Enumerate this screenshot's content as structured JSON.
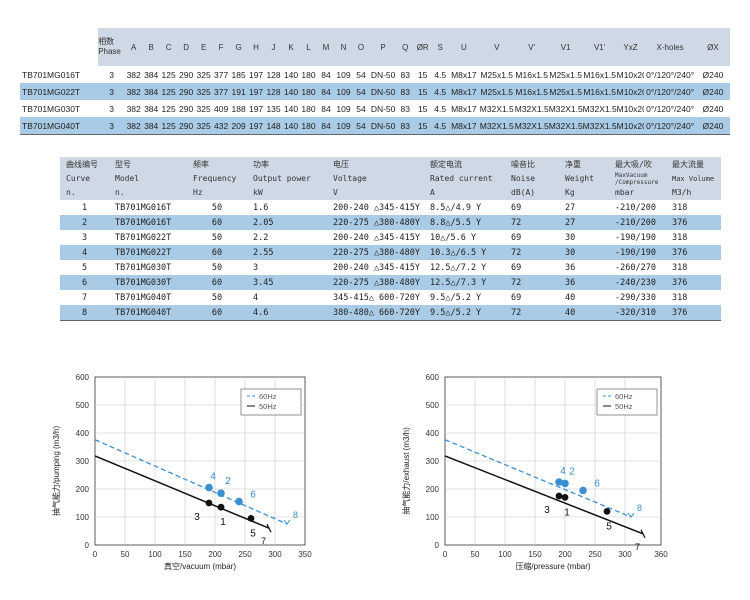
{
  "dimension_table": {
    "phase_header_cn": "相数",
    "phase_header_en": "Phase",
    "columns": [
      "A",
      "B",
      "C",
      "D",
      "E",
      "F",
      "G",
      "H",
      "J",
      "K",
      "L",
      "M",
      "N",
      "O",
      "P",
      "Q",
      "ØR",
      "S",
      "U",
      "V",
      "V'",
      "V1",
      "V1'",
      "YxZ",
      "X-holes",
      "ØX"
    ],
    "rows": [
      {
        "model": "TB701MG016T",
        "phase": "3",
        "values": [
          "382",
          "384",
          "125",
          "290",
          "325",
          "377",
          "185",
          "197",
          "128",
          "140",
          "180",
          "84",
          "109",
          "54",
          "DN-50",
          "83",
          "15",
          "4.5",
          "M8x17",
          "M25x1.5",
          "M16x1.5",
          "M25x1.5",
          "M16x1.5",
          "M10x20",
          "0°/120°/240°",
          "Ø240"
        ]
      },
      {
        "model": "TB701MG022T",
        "phase": "3",
        "values": [
          "382",
          "384",
          "125",
          "290",
          "325",
          "377",
          "191",
          "197",
          "128",
          "140",
          "180",
          "84",
          "109",
          "54",
          "DN-50",
          "83",
          "15",
          "4.5",
          "M8x17",
          "M25x1.5",
          "M16x1.5",
          "M25x1.5",
          "M16x1.5",
          "M10x20",
          "0°/120°/240°",
          "Ø240"
        ]
      },
      {
        "model": "TB701MG030T",
        "phase": "3",
        "values": [
          "382",
          "384",
          "125",
          "290",
          "325",
          "409",
          "188",
          "197",
          "135",
          "140",
          "180",
          "84",
          "109",
          "54",
          "DN-50",
          "83",
          "15",
          "4.5",
          "M8x17",
          "M32X1.5",
          "M32X1.5",
          "M32X1.5",
          "M32X1.5",
          "M10x20",
          "0°/120°/240°",
          "Ø240"
        ]
      },
      {
        "model": "TB701MG040T",
        "phase": "3",
        "values": [
          "382",
          "384",
          "125",
          "290",
          "325",
          "432",
          "209",
          "197",
          "148",
          "140",
          "180",
          "84",
          "109",
          "54",
          "DN-50",
          "83",
          "15",
          "4.5",
          "M8x17",
          "M32X1.5",
          "M32X1.5",
          "M32X1.5",
          "M32X1.5",
          "M10x20",
          "0°/120°/240°",
          "Ø240"
        ]
      }
    ]
  },
  "performance_table": {
    "headers": [
      {
        "cn": "曲线编号",
        "en": "Curve",
        "unit": "n."
      },
      {
        "cn": "型号",
        "en": "Model",
        "unit": "n."
      },
      {
        "cn": "频率",
        "en": "Frequency",
        "unit": "Hz"
      },
      {
        "cn": "功率",
        "en": "Output power",
        "unit": "kW"
      },
      {
        "cn": "电压",
        "en": "Voltage",
        "unit": "V"
      },
      {
        "cn": "额定电流",
        "en": "Rated current",
        "unit": "A"
      },
      {
        "cn": "噪音比",
        "en": "Noise",
        "unit": "dB(A)"
      },
      {
        "cn": "净重",
        "en": "Weight",
        "unit": "Kg"
      },
      {
        "cn": "最大吸/吹",
        "en": "MaxVacuum /Compressure",
        "unit": "mbar"
      },
      {
        "cn": "最大流量",
        "en": "Max Volume",
        "unit": "M3/h"
      }
    ],
    "rows": [
      [
        "1",
        "TB701MG016T",
        "50",
        "1.6",
        "200-240 △345-415Y",
        "8.5△/4.9 Y",
        "69",
        "27",
        "-210/200",
        "318"
      ],
      [
        "2",
        "TB701MG016T",
        "60",
        "2.05",
        "220-275 △380-480Y",
        "8.8△/5.5 Y",
        "72",
        "27",
        "-210/200",
        "376"
      ],
      [
        "3",
        "TB701MG022T",
        "50",
        "2.2",
        "200-240 △345-415Y",
        "10△/5.6 Y",
        "69",
        "30",
        "-190/190",
        "318"
      ],
      [
        "4",
        "TB701MG022T",
        "60",
        "2.55",
        "220-275 △380-480Y",
        "10.3△/6.5 Y",
        "72",
        "30",
        "-190/190",
        "376"
      ],
      [
        "5",
        "TB701MG030T",
        "50",
        "3",
        "200-240 △345-415Y",
        "12.5△/7.2 Y",
        "69",
        "36",
        "-260/270",
        "318"
      ],
      [
        "6",
        "TB701MG030T",
        "60",
        "3.45",
        "220-275 △380-480Y",
        "12.5△/7.3 Y",
        "72",
        "36",
        "-240/230",
        "376"
      ],
      [
        "7",
        "TB701MG040T",
        "50",
        "4",
        "345-415△ 600-720Y",
        "9.5△/5.2 Y",
        "69",
        "40",
        "-290/330",
        "318"
      ],
      [
        "8",
        "TB701MG040T",
        "60",
        "4.6",
        "380-480△ 660-720Y",
        "9.5△/5.2 Y",
        "72",
        "40",
        "-320/310",
        "376"
      ]
    ]
  },
  "chart_data": [
    {
      "type": "line",
      "xlabel": "真空/vacuum (mbar)",
      "ylabel": "抽气能力/pumping (m3/h)",
      "xlim": [
        0,
        350
      ],
      "ylim": [
        0,
        600
      ],
      "xticks": [
        0,
        50,
        100,
        150,
        200,
        250,
        300,
        350
      ],
      "yticks": [
        0,
        100,
        200,
        300,
        400,
        500,
        600
      ],
      "grid": true,
      "legend": {
        "position": "top-right",
        "entries": [
          "60Hz",
          "50Hz"
        ]
      },
      "colors": {
        "60Hz": "#3a8fd0",
        "50Hz": "#111111"
      },
      "series": [
        {
          "name": "60Hz",
          "style": "dashed",
          "x": [
            0,
            320
          ],
          "y": [
            376,
            75
          ],
          "end_label": "8"
        },
        {
          "name": "50Hz",
          "style": "solid",
          "x": [
            0,
            290
          ],
          "y": [
            318,
            60
          ],
          "end_label": "7"
        }
      ],
      "points": [
        {
          "label": "4",
          "series": "60Hz",
          "x": 190,
          "y": 205
        },
        {
          "label": "2",
          "series": "60Hz",
          "x": 210,
          "y": 185
        },
        {
          "label": "6",
          "series": "60Hz",
          "x": 240,
          "y": 155
        },
        {
          "label": "3",
          "series": "50Hz",
          "x": 190,
          "y": 150
        },
        {
          "label": "1",
          "series": "50Hz",
          "x": 210,
          "y": 135
        },
        {
          "label": "5",
          "series": "50Hz",
          "x": 260,
          "y": 95
        }
      ]
    },
    {
      "type": "line",
      "xlabel": "压缩/pressure (mbar)",
      "ylabel": "抽气能力/exhaust (m3/h)",
      "xlim": [
        0,
        360
      ],
      "ylim": [
        0,
        600
      ],
      "xticks": [
        0,
        50,
        100,
        150,
        200,
        250,
        300,
        360
      ],
      "yticks": [
        0,
        100,
        200,
        300,
        400,
        500,
        600
      ],
      "grid": true,
      "legend": {
        "position": "top-right",
        "entries": [
          "60Hz",
          "50Hz"
        ]
      },
      "colors": {
        "60Hz": "#3a8fd0",
        "50Hz": "#111111"
      },
      "series": [
        {
          "name": "60Hz",
          "style": "dashed",
          "x": [
            0,
            310
          ],
          "y": [
            376,
            100
          ],
          "end_label": "8"
        },
        {
          "name": "50Hz",
          "style": "solid",
          "x": [
            0,
            330
          ],
          "y": [
            318,
            40
          ],
          "end_label": "7"
        }
      ],
      "points": [
        {
          "label": "4",
          "series": "60Hz",
          "x": 190,
          "y": 225
        },
        {
          "label": "2",
          "series": "60Hz",
          "x": 200,
          "y": 220
        },
        {
          "label": "6",
          "series": "60Hz",
          "x": 230,
          "y": 195
        },
        {
          "label": "3",
          "series": "50Hz",
          "x": 190,
          "y": 175
        },
        {
          "label": "1",
          "series": "50Hz",
          "x": 200,
          "y": 170
        },
        {
          "label": "5",
          "series": "50Hz",
          "x": 270,
          "y": 120
        }
      ]
    }
  ]
}
